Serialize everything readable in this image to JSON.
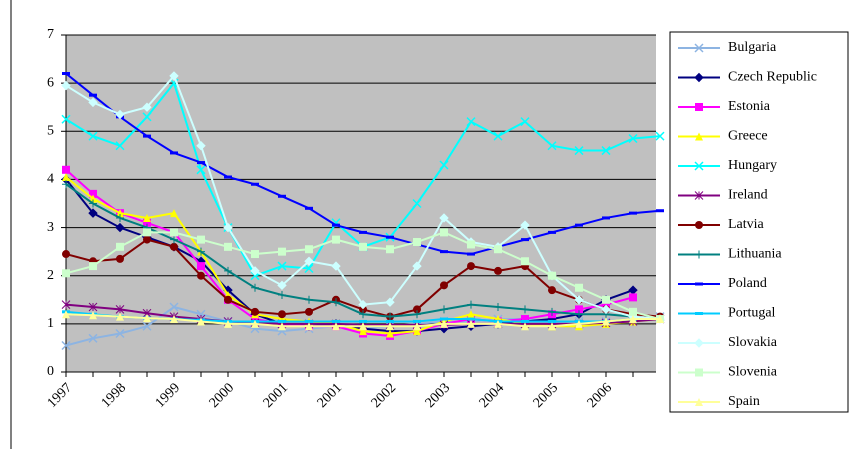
{
  "chart_data": {
    "type": "line",
    "categories": [
      "1997",
      null,
      "1998",
      null,
      "1999",
      null,
      "2000",
      null,
      "2001",
      null,
      "2001",
      null,
      "2002",
      null,
      "2003",
      null,
      "2004",
      null,
      "2005",
      null,
      "2006",
      null,
      null
    ],
    "ylim": [
      0,
      7
    ],
    "yticks": [
      0,
      1,
      2,
      3,
      4,
      5,
      6,
      7
    ],
    "grid": true,
    "legend": "right",
    "series": [
      {
        "name": "Bulgaria",
        "color": "#8db4e2",
        "marker": "x",
        "values": [
          0.55,
          0.7,
          0.8,
          0.95,
          1.35,
          1.2,
          1.05,
          0.9,
          0.85,
          0.9,
          0.95,
          0.9,
          0.95,
          1.0,
          1.05,
          1.05,
          1.1,
          1.1,
          1.05,
          1.05,
          1.05,
          1.1,
          1.15
        ]
      },
      {
        "name": "Czech Republic",
        "color": "#000080",
        "marker": "diamond",
        "values": [
          4.0,
          3.3,
          3.0,
          2.8,
          2.6,
          2.3,
          1.7,
          1.2,
          1.0,
          0.95,
          1.0,
          0.9,
          0.85,
          0.85,
          0.9,
          0.95,
          1.0,
          1.05,
          1.1,
          1.2,
          1.5,
          1.7,
          null
        ]
      },
      {
        "name": "Estonia",
        "color": "#ff00ff",
        "marker": "square",
        "values": [
          4.2,
          3.7,
          3.3,
          3.1,
          2.9,
          2.2,
          1.5,
          1.1,
          1.0,
          0.95,
          0.95,
          0.8,
          0.75,
          0.85,
          1.0,
          1.1,
          1.05,
          1.1,
          1.2,
          1.3,
          1.4,
          1.55,
          null
        ]
      },
      {
        "name": "Greece",
        "color": "#ffff00",
        "marker": "triangle",
        "values": [
          4.05,
          3.6,
          3.3,
          3.2,
          3.3,
          2.5,
          1.6,
          1.2,
          1.1,
          1.05,
          1.0,
          0.85,
          0.8,
          0.85,
          1.05,
          1.2,
          1.1,
          1.0,
          0.95,
          0.95,
          1.0,
          1.05,
          1.1
        ]
      },
      {
        "name": "Hungary",
        "color": "#00ffff",
        "marker": "x",
        "values": [
          5.25,
          4.9,
          4.7,
          5.3,
          6.0,
          4.2,
          3.0,
          2.0,
          2.2,
          2.15,
          3.1,
          2.6,
          2.8,
          3.5,
          4.3,
          5.2,
          4.9,
          5.2,
          4.7,
          4.6,
          4.6,
          4.85,
          4.9
        ]
      },
      {
        "name": "Ireland",
        "color": "#800080",
        "marker": "star",
        "values": [
          1.4,
          1.35,
          1.3,
          1.22,
          1.15,
          1.1,
          1.05,
          1.02,
          1.0,
          1.0,
          1.0,
          0.98,
          0.98,
          0.98,
          0.98,
          1.0,
          1.0,
          1.0,
          1.0,
          1.0,
          1.02,
          1.05,
          1.1
        ]
      },
      {
        "name": "Latvia",
        "color": "#800000",
        "marker": "circle",
        "values": [
          2.45,
          2.3,
          2.35,
          2.75,
          2.6,
          2.0,
          1.5,
          1.25,
          1.2,
          1.25,
          1.5,
          1.3,
          1.15,
          1.3,
          1.8,
          2.2,
          2.1,
          2.2,
          1.7,
          1.5,
          1.3,
          1.2,
          1.15
        ]
      },
      {
        "name": "Lithuania",
        "color": "#008080",
        "marker": "plus",
        "values": [
          3.9,
          3.5,
          3.2,
          3.0,
          2.75,
          2.5,
          2.1,
          1.75,
          1.6,
          1.5,
          1.45,
          1.2,
          1.15,
          1.2,
          1.3,
          1.4,
          1.35,
          1.3,
          1.25,
          1.2,
          1.2,
          1.15,
          1.1
        ]
      },
      {
        "name": "Poland",
        "color": "#0000ff",
        "marker": "dash",
        "values": [
          6.2,
          5.75,
          5.3,
          4.9,
          4.55,
          4.35,
          4.05,
          3.9,
          3.65,
          3.4,
          3.05,
          2.9,
          2.8,
          2.65,
          2.5,
          2.45,
          2.6,
          2.75,
          2.9,
          3.05,
          3.2,
          3.3,
          3.35
        ]
      },
      {
        "name": "Portugal",
        "color": "#00ccff",
        "marker": "dash",
        "values": [
          1.25,
          1.2,
          1.15,
          1.12,
          1.1,
          1.08,
          1.05,
          1.05,
          1.05,
          1.05,
          1.05,
          1.05,
          1.05,
          1.05,
          1.1,
          1.1,
          1.05,
          1.05,
          1.05,
          1.05,
          1.05,
          1.1,
          1.1
        ]
      },
      {
        "name": "Slovakia",
        "color": "#ccffff",
        "marker": "diamond",
        "values": [
          5.95,
          5.6,
          5.35,
          5.5,
          6.15,
          4.7,
          3.0,
          2.1,
          1.8,
          2.3,
          2.2,
          1.4,
          1.45,
          2.2,
          3.2,
          2.7,
          2.6,
          3.05,
          2.0,
          1.5,
          1.3,
          1.15,
          1.1
        ]
      },
      {
        "name": "Slovenia",
        "color": "#ccffcc",
        "marker": "square",
        "values": [
          2.05,
          2.2,
          2.6,
          2.9,
          2.9,
          2.75,
          2.6,
          2.45,
          2.5,
          2.55,
          2.75,
          2.6,
          2.55,
          2.7,
          2.9,
          2.65,
          2.55,
          2.3,
          2.0,
          1.75,
          1.5,
          1.25,
          1.1
        ]
      },
      {
        "name": "Spain",
        "color": "#ffff99",
        "marker": "triangle",
        "values": [
          1.2,
          1.18,
          1.15,
          1.12,
          1.1,
          1.05,
          1.0,
          1.0,
          0.95,
          0.95,
          0.95,
          0.95,
          0.95,
          0.95,
          1.0,
          1.0,
          1.0,
          0.95,
          0.95,
          1.0,
          1.05,
          1.1,
          1.1
        ]
      }
    ]
  }
}
